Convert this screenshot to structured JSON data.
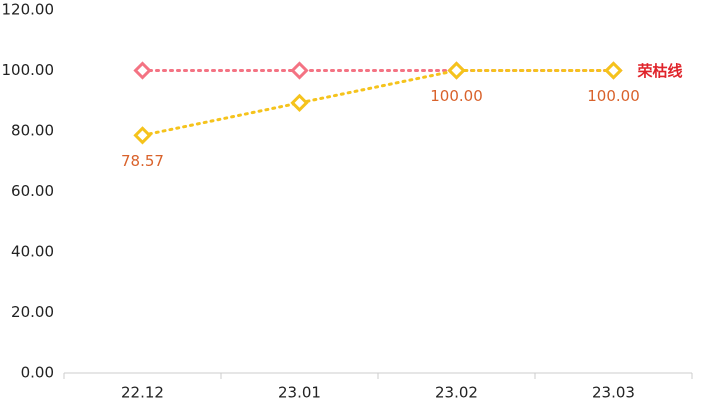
{
  "chart_data": {
    "type": "line",
    "categories": [
      "22.12",
      "23.01",
      "23.02",
      "23.03"
    ],
    "series": [
      {
        "name": "荣枯线",
        "color": "#f47383",
        "values": [
          100,
          100,
          100,
          100
        ]
      },
      {
        "color": "#f5c31c",
        "values": [
          78.57,
          89.3,
          100,
          100
        ],
        "value_labels": [
          "78.57",
          null,
          "100.00",
          "100.00"
        ]
      }
    ],
    "ylim": [
      0,
      120
    ],
    "yticks": [
      {
        "value": 0,
        "label": "0.00"
      },
      {
        "value": 20,
        "label": "20.00"
      },
      {
        "value": 40,
        "label": "40.00"
      },
      {
        "value": 60,
        "label": "60.00"
      },
      {
        "value": 80,
        "label": "80.00"
      },
      {
        "value": 100,
        "label": "100.00"
      },
      {
        "value": 120,
        "label": "120.00"
      }
    ],
    "grid": false
  }
}
